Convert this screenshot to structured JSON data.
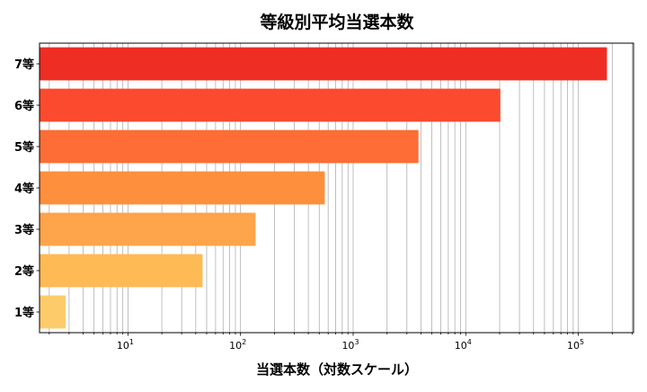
{
  "chart_data": {
    "type": "bar",
    "orientation": "horizontal",
    "title": "等級別平均当選本数",
    "xlabel": "当選本数（対数スケール）",
    "ylabel": "",
    "xscale": "log",
    "xlim": [
      1.64,
      309000
    ],
    "grid": "x, major and minor",
    "categories": [
      "1等",
      "2等",
      "3等",
      "4等",
      "5等",
      "6等",
      "7等"
    ],
    "values": [
      2.8,
      46,
      136,
      560,
      3800,
      20300,
      179500
    ],
    "colors": [
      "#fecb6a",
      "#feba55",
      "#fea44a",
      "#fd8f3d",
      "#fd6d35",
      "#fc4a2e",
      "#ee2e24"
    ],
    "xticks": [
      {
        "value": 10,
        "base": "10",
        "exp": "1"
      },
      {
        "value": 100,
        "base": "10",
        "exp": "2"
      },
      {
        "value": 1000,
        "base": "10",
        "exp": "3"
      },
      {
        "value": 10000,
        "base": "10",
        "exp": "4"
      },
      {
        "value": 100000,
        "base": "10",
        "exp": "5"
      }
    ]
  }
}
